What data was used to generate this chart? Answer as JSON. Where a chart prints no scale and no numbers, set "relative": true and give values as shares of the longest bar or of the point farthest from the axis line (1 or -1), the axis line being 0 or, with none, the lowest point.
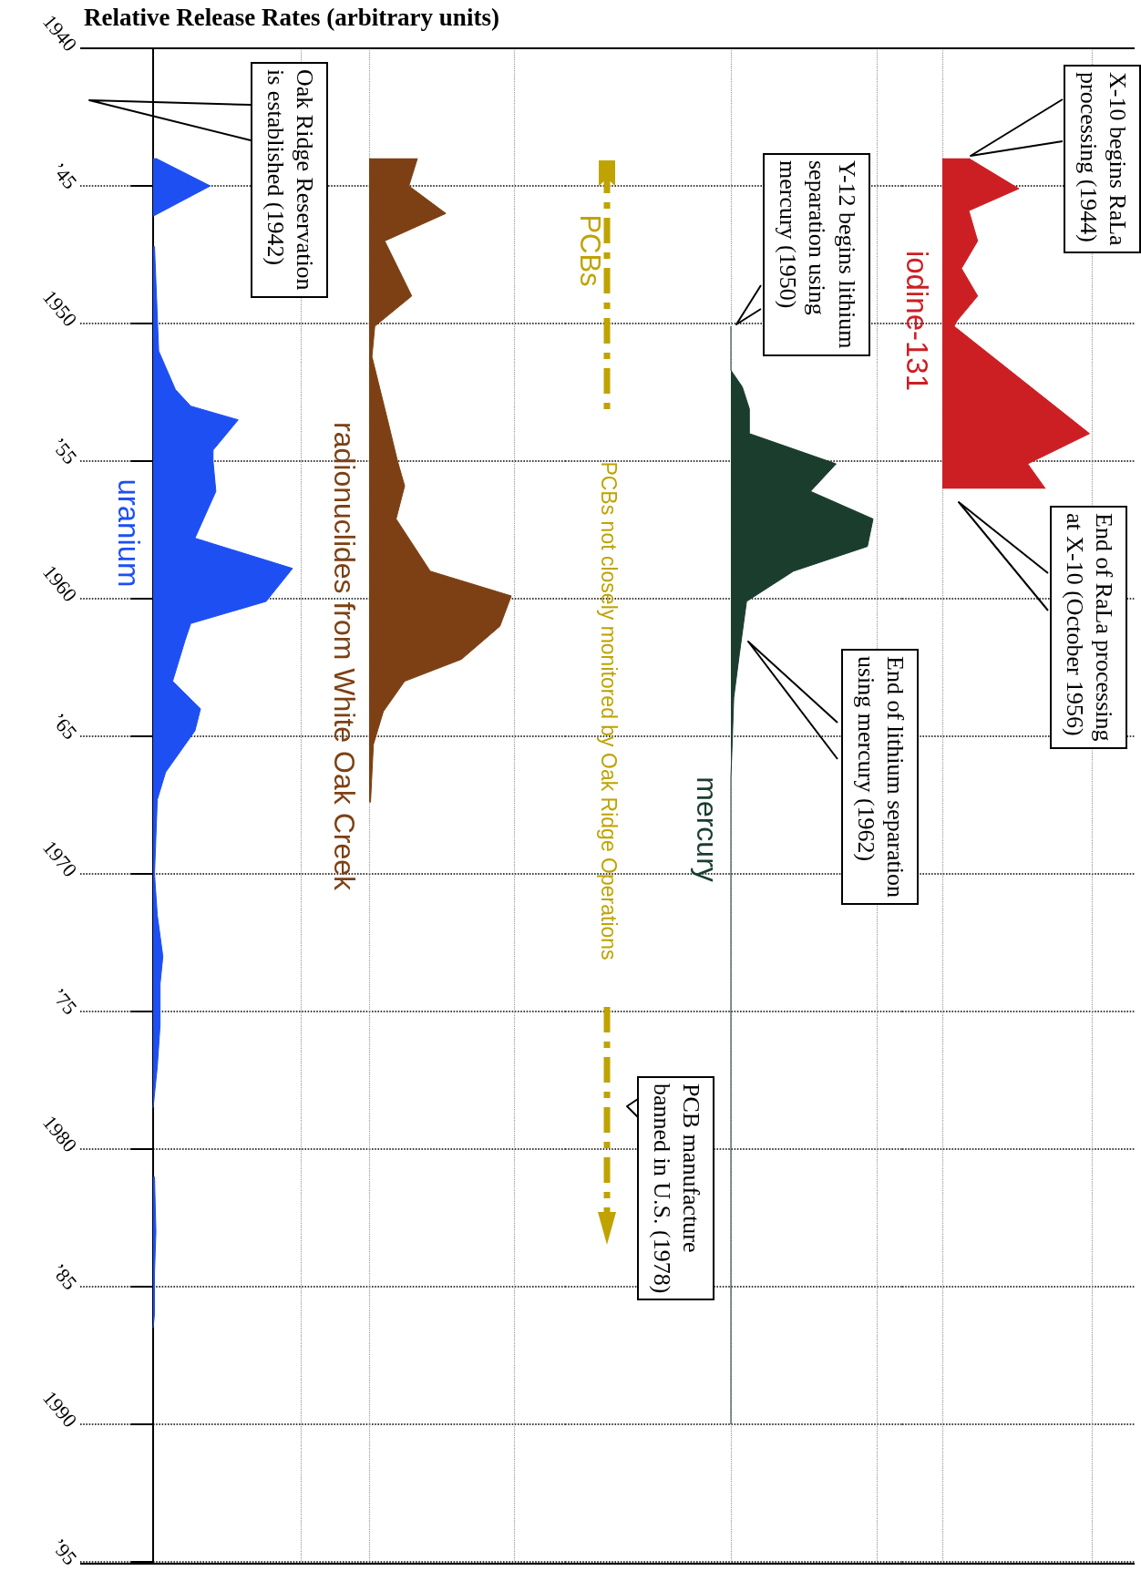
{
  "chart_data": [
    {
      "type": "area",
      "title": "Relative Release Rates (arbitrary units)",
      "relative": true,
      "orientation": "horizontal",
      "grid": true,
      "ylim": [
        1995,
        1940
      ],
      "yticks": [
        1940,
        {
          "value": 1945,
          "label": "’45"
        },
        1950,
        {
          "value": 1955,
          "label": "’55"
        },
        1960,
        {
          "value": 1965,
          "label": "’65"
        },
        1970,
        {
          "value": 1975,
          "label": "’75"
        },
        1980,
        {
          "value": 1985,
          "label": "’85"
        },
        1990,
        {
          "value": 1995,
          "label": "’95"
        }
      ],
      "x": [
        1944.0,
        1945.0,
        1946.1,
        1946.6,
        1947.2,
        1951.0,
        1952.4,
        1953.0,
        1953.5,
        1954.6,
        1955.0,
        1956.1,
        1957.8,
        1958.9,
        1960.1,
        1960.9,
        1961.5,
        1963.0,
        1964.0,
        1964.8,
        1966.3,
        1967.3,
        1970.0,
        1971.5,
        1973.0,
        1974.0,
        1975.5,
        1977.0,
        1978.5,
        1980.0,
        1981.0,
        1983.0,
        1984.5,
        1986.0,
        1986.5
      ],
      "series": [
        {
          "name": "uranium",
          "color": "#1d4ff2",
          "values": [
            0.02,
            0.41,
            0,
            null,
            0.01,
            0.04,
            0.16,
            0.27,
            0.61,
            0.43,
            0.43,
            0.45,
            0.3,
            1.0,
            0.81,
            0.27,
            0.23,
            0.14,
            0.34,
            0.3,
            0.09,
            0.03,
            0.01,
            0.03,
            0.07,
            0.05,
            0.05,
            0.03,
            0,
            null,
            0.01,
            0.02,
            0.01,
            0.01,
            0
          ]
        }
      ],
      "annotations": [
        "Oak Ridge Reservation\nis established (1942)"
      ]
    },
    {
      "type": "area",
      "relative": true,
      "orientation": "horizontal",
      "grid": true,
      "tick_labels": false,
      "ylim": [
        1995,
        1940
      ],
      "yticks": [
        1940,
        1945,
        1950,
        1955,
        1960,
        1965,
        1970,
        1975,
        1980,
        1985,
        1990,
        1995
      ],
      "x": [
        1944.0,
        1945.0,
        1946.0,
        1947.0,
        1949.0,
        1950.1,
        1951.2,
        1953.5,
        1955.0,
        1955.9,
        1957.1,
        1959.0,
        1959.9,
        1961.0,
        1962.2,
        1963.0,
        1964.1,
        1965.3,
        1967.4
      ],
      "series": [
        {
          "name": "radionuclides from White Oak Creek",
          "color": "#7d4014",
          "values": [
            0.34,
            0.28,
            0.54,
            0.11,
            0.3,
            0.04,
            0.02,
            0.13,
            0.2,
            0.25,
            0.19,
            0.43,
            1.0,
            0.92,
            0.65,
            0.25,
            0.1,
            0.03,
            0.01
          ]
        }
      ]
    },
    {
      "type": "area",
      "relative": true,
      "orientation": "horizontal",
      "grid": true,
      "tick_labels": false,
      "ylim": [
        1995,
        1940
      ],
      "yticks": [
        1940,
        1945,
        1950,
        1955,
        1960,
        1965,
        1970,
        1975,
        1980,
        1985,
        1990,
        1995
      ],
      "x": [
        1950.1,
        1951.7,
        1952.3,
        1953.1,
        1954.0,
        1955.1,
        1956.1,
        1957.1,
        1958.1,
        1959.0,
        1960.1,
        1962.0,
        1963.6,
        1965.1,
        1966.5,
        1990.0
      ],
      "series": [
        {
          "name": "mercury",
          "color": "#1b3d2e",
          "values": [
            0,
            0,
            0.08,
            0.13,
            0.13,
            0.74,
            0.56,
            1.0,
            0.96,
            0.44,
            0.11,
            0.06,
            0.02,
            0.01,
            0,
            0
          ]
        }
      ],
      "annotations": [
        "PCBs",
        "PCBs not closely monitored by Oak Ridge Operations",
        "Y-12 begins lithium\nseparation using\nmercury (1950)",
        "End of lithium separation\nusing mercury (1962)",
        "PCB manufacture\nbanned in U.S. (1978)"
      ]
    },
    {
      "type": "area",
      "relative": true,
      "orientation": "horizontal",
      "grid": true,
      "tick_labels": false,
      "ylim": [
        1995,
        1940
      ],
      "yticks": [
        1940,
        1945,
        1950,
        1955,
        1960,
        1965,
        1970,
        1975,
        1980,
        1985,
        1990,
        1995
      ],
      "x": [
        1944.0,
        1945.1,
        1945.9,
        1947.0,
        1948.0,
        1949.0,
        1949.9,
        1950.1,
        1954.0,
        1955.1,
        1956.0
      ],
      "series": [
        {
          "name": "iodine-131",
          "color": "#cc1f24",
          "values": [
            0.18,
            0.52,
            0.18,
            0.24,
            0.13,
            0.24,
            0.1,
            0.08,
            1.0,
            0.58,
            0.7
          ]
        }
      ],
      "annotations": [
        "X-10 begins RaLa\nprocessing (1944)",
        "End of RaLa processing\nat X-10 (October 1956)"
      ]
    }
  ]
}
